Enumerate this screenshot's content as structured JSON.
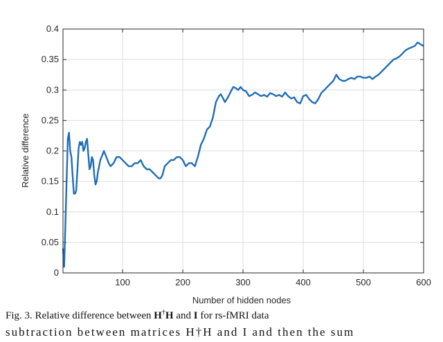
{
  "chart_data": {
    "type": "line",
    "title": "",
    "xlabel": "Number of hidden nodes",
    "ylabel": "Relative difference",
    "xlim": [
      1,
      600
    ],
    "ylim": [
      0,
      0.4
    ],
    "xticks": [
      100,
      200,
      300,
      400,
      500,
      600
    ],
    "xtick_labels": [
      "100",
      "200",
      "300",
      "400",
      "500",
      "600"
    ],
    "yticks": [
      0,
      0.05,
      0.1,
      0.15,
      0.2,
      0.25,
      0.3,
      0.35,
      0.4
    ],
    "ytick_labels": [
      "0",
      "0.05",
      "0.1",
      "0.15",
      "0.2",
      "0.25",
      "0.3",
      "0.35",
      "0.4"
    ],
    "grid": true,
    "series_color": "#1f6db5",
    "series": [
      {
        "x": [
          1,
          3,
          5,
          7,
          9,
          11,
          13,
          15,
          17,
          19,
          21,
          23,
          25,
          27,
          29,
          31,
          33,
          35,
          37,
          39,
          41,
          43,
          45,
          47,
          49,
          51,
          53,
          55,
          57,
          59,
          61,
          63,
          65,
          67,
          69,
          71,
          73,
          75,
          77,
          80,
          85,
          90,
          95,
          100,
          105,
          110,
          115,
          120,
          125,
          130,
          135,
          140,
          145,
          150,
          155,
          160,
          163,
          166,
          170,
          175,
          180,
          185,
          190,
          195,
          200,
          205,
          210,
          215,
          220,
          225,
          230,
          235,
          240,
          245,
          250,
          255,
          260,
          263,
          266,
          270,
          273,
          276,
          280,
          284,
          288,
          292,
          296,
          300,
          305,
          310,
          315,
          320,
          325,
          330,
          335,
          340,
          345,
          350,
          355,
          360,
          365,
          370,
          375,
          380,
          385,
          390,
          395,
          400,
          405,
          410,
          415,
          420,
          425,
          430,
          435,
          440,
          445,
          450,
          455,
          460,
          465,
          470,
          475,
          480,
          485,
          490,
          495,
          500,
          505,
          510,
          515,
          520,
          525,
          530,
          535,
          540,
          545,
          550,
          555,
          560,
          565,
          570,
          575,
          580,
          585,
          590,
          595,
          600
        ],
        "y": [
          0.04,
          0.01,
          0.08,
          0.15,
          0.22,
          0.23,
          0.2,
          0.19,
          0.16,
          0.13,
          0.13,
          0.135,
          0.17,
          0.205,
          0.215,
          0.21,
          0.215,
          0.2,
          0.205,
          0.215,
          0.22,
          0.195,
          0.17,
          0.175,
          0.19,
          0.185,
          0.16,
          0.145,
          0.15,
          0.165,
          0.175,
          0.185,
          0.19,
          0.195,
          0.2,
          0.195,
          0.19,
          0.185,
          0.18,
          0.175,
          0.18,
          0.19,
          0.19,
          0.185,
          0.18,
          0.175,
          0.175,
          0.18,
          0.18,
          0.185,
          0.175,
          0.17,
          0.17,
          0.165,
          0.16,
          0.155,
          0.155,
          0.16,
          0.175,
          0.18,
          0.185,
          0.185,
          0.19,
          0.19,
          0.185,
          0.175,
          0.18,
          0.18,
          0.175,
          0.19,
          0.21,
          0.22,
          0.235,
          0.24,
          0.255,
          0.28,
          0.29,
          0.293,
          0.288,
          0.28,
          0.285,
          0.29,
          0.298,
          0.305,
          0.303,
          0.3,
          0.305,
          0.3,
          0.298,
          0.29,
          0.292,
          0.296,
          0.293,
          0.29,
          0.292,
          0.289,
          0.295,
          0.293,
          0.29,
          0.292,
          0.289,
          0.296,
          0.29,
          0.286,
          0.288,
          0.28,
          0.278,
          0.29,
          0.292,
          0.285,
          0.28,
          0.278,
          0.285,
          0.295,
          0.3,
          0.305,
          0.31,
          0.315,
          0.325,
          0.318,
          0.315,
          0.315,
          0.318,
          0.32,
          0.318,
          0.322,
          0.322,
          0.32,
          0.32,
          0.322,
          0.318,
          0.322,
          0.325,
          0.33,
          0.335,
          0.34,
          0.345,
          0.35,
          0.352,
          0.355,
          0.36,
          0.365,
          0.368,
          0.37,
          0.372,
          0.378,
          0.375,
          0.372
        ]
      }
    ]
  },
  "caption": {
    "prefix": "Fig. 3.  Relative difference between ",
    "H": "H",
    "dagger": "†",
    "middle": " and ",
    "I": "I",
    "suffix": " for rs-fMRI data"
  },
  "body_text": "subtraction between matrices H†H and I and then the sum"
}
